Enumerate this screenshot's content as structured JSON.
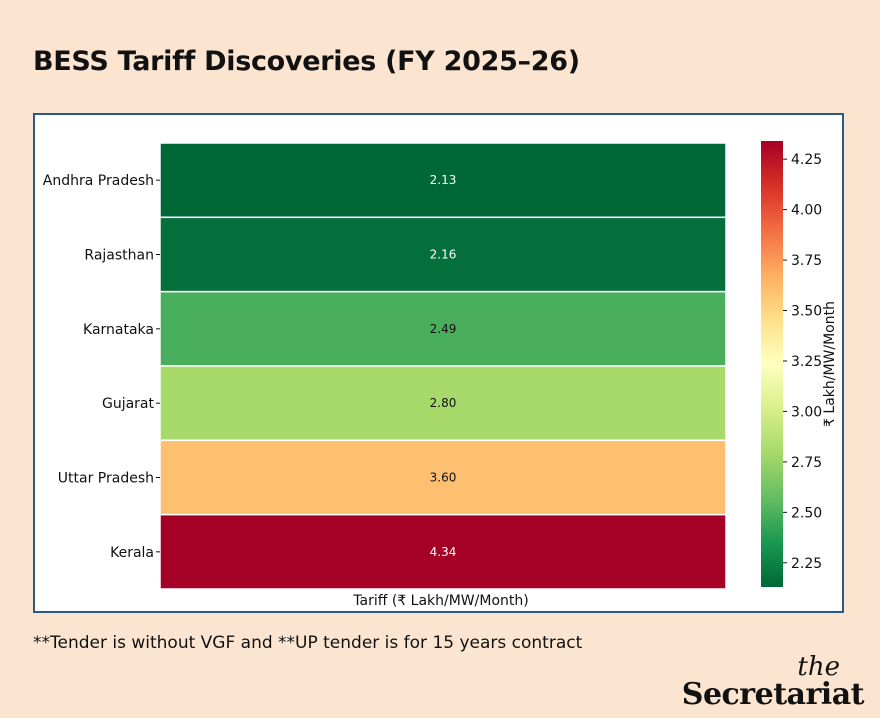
{
  "page": {
    "title": "BESS Tariff Discoveries (FY 2025–26)",
    "footnote": "**Tender is without VGF and **UP tender is for 15 years contract",
    "brand_top": "the",
    "brand_name": "Secretariat"
  },
  "colors": {
    "background": "#fbe5d0",
    "panel_border": "#2b5a86",
    "colormap": "RdYlGn_r"
  },
  "chart_data": {
    "type": "heatmap",
    "rows": [
      "Andhra Pradesh",
      "Rajasthan",
      "Karnataka",
      "Gujarat",
      "Uttar Pradesh",
      "Kerala"
    ],
    "columns": [
      ""
    ],
    "values": [
      2.13,
      2.16,
      2.49,
      2.8,
      3.6,
      4.34
    ],
    "value_labels": [
      "2.13",
      "2.16",
      "2.49",
      "2.80",
      "3.60",
      "4.34"
    ],
    "xlabel": "Tariff (₹ Lakh/MW/Month)",
    "colorbar": {
      "label": "₹ Lakh/MW/Month",
      "range": [
        2.13,
        4.34
      ],
      "ticks": [
        2.25,
        2.5,
        2.75,
        3.0,
        3.25,
        3.5,
        3.75,
        4.0,
        4.25
      ],
      "tick_labels": [
        "2.25",
        "2.50",
        "2.75",
        "3.00",
        "3.25",
        "3.50",
        "3.75",
        "4.00",
        "4.25"
      ]
    }
  }
}
